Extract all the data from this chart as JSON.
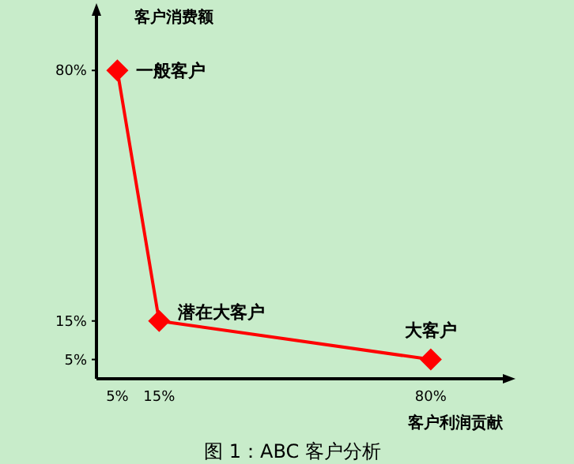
{
  "chart_data": {
    "type": "line",
    "ylabel": "客户消费额",
    "xlabel": "客户利润贡献",
    "x": [
      5,
      15,
      80
    ],
    "series": [
      {
        "color": "#ff0000",
        "values": [
          80,
          15,
          5
        ]
      }
    ],
    "marker": "diamond",
    "xlim": [
      0,
      98
    ],
    "ylim": [
      0,
      95
    ],
    "xticks": [
      {
        "value": 5,
        "label": "5%"
      },
      {
        "value": 15,
        "label": "15%"
      },
      {
        "value": 80,
        "label": "80%"
      }
    ],
    "yticks": [
      {
        "value": 5,
        "label": "5%"
      },
      {
        "value": 15,
        "label": "15%"
      },
      {
        "value": 80,
        "label": "80%"
      }
    ],
    "annotations": [
      {
        "text": "一般客户",
        "x": 5,
        "y": 80
      },
      {
        "text": "潜在大客户",
        "x": 15,
        "y": 15
      },
      {
        "text": "大客户",
        "x": 80,
        "y": 5
      },
      "图 1：ABC 客户分析"
    ]
  }
}
